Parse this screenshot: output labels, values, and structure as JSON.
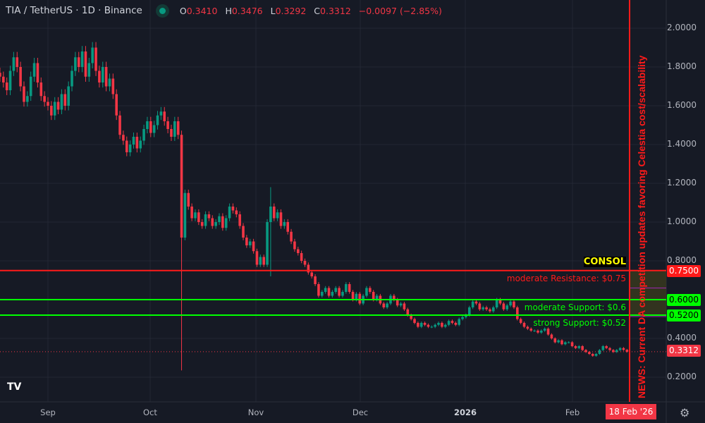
{
  "header": {
    "symbol": "TIA / TetherUS · 1D · Binance",
    "status_color": "#089981",
    "ohlc": {
      "o_label": "O",
      "o": "0.3410",
      "h_label": "H",
      "h": "0.3476",
      "l_label": "L",
      "l": "0.3292",
      "c_label": "C",
      "c": "0.3312",
      "change": "−0.0097 (−2.85%)"
    }
  },
  "price_axis": {
    "labels": [
      "2.0000",
      "1.8000",
      "1.6000",
      "1.4000",
      "1.2000",
      "1.0000",
      "0.8000",
      "0.4000",
      "0.2000"
    ]
  },
  "time_axis": {
    "labels": [
      "Sep",
      "Oct",
      "Nov",
      "Dec",
      "2026",
      "Feb"
    ],
    "cursor_date": "18 Feb '26"
  },
  "levels": [
    {
      "price": 0.75,
      "tag": "0.7500",
      "label": "moderate Resistance: $0.75",
      "color": "#ff1a1a"
    },
    {
      "price": 0.6,
      "tag": "0.6000",
      "label": "moderate Support: $0.6",
      "color": "#00ff00"
    },
    {
      "price": 0.52,
      "tag": "0.5200",
      "label": "strong Support: $0.52",
      "color": "#00ff00"
    }
  ],
  "current_price": {
    "tag": "0.3312",
    "color": "#f23645"
  },
  "zone_label": "CONSOL",
  "news": "NEWS: Current DA competition updates favoring Celestia cost/scalability",
  "colors": {
    "up": "#089981",
    "down": "#f23645",
    "background": "#161a25"
  },
  "chart_data": {
    "type": "candlestick",
    "ylim": [
      0.15,
      2.1
    ],
    "grid": true,
    "closes": [
      1.75,
      1.72,
      1.68,
      1.78,
      1.85,
      1.8,
      1.7,
      1.62,
      1.65,
      1.75,
      1.82,
      1.72,
      1.65,
      1.62,
      1.6,
      1.55,
      1.62,
      1.58,
      1.66,
      1.6,
      1.7,
      1.78,
      1.85,
      1.8,
      1.88,
      1.75,
      1.82,
      1.9,
      1.78,
      1.72,
      1.8,
      1.7,
      1.74,
      1.66,
      1.55,
      1.45,
      1.42,
      1.36,
      1.4,
      1.44,
      1.38,
      1.42,
      1.48,
      1.52,
      1.46,
      1.5,
      1.55,
      1.57,
      1.52,
      1.48,
      1.44,
      1.52,
      1.45,
      0.92,
      1.15,
      1.08,
      1.02,
      1.05,
      1.0,
      0.98,
      1.04,
      1.02,
      0.98,
      1.0,
      1.03,
      0.97,
      1.02,
      1.08,
      1.06,
      1.04,
      0.98,
      0.92,
      0.88,
      0.9,
      0.85,
      0.78,
      0.82,
      0.78,
      1.0,
      1.08,
      1.02,
      1.05,
      0.98,
      1.0,
      0.95,
      0.9,
      0.86,
      0.84,
      0.8,
      0.78,
      0.74,
      0.72,
      0.68,
      0.62,
      0.64,
      0.66,
      0.62,
      0.64,
      0.66,
      0.62,
      0.64,
      0.68,
      0.64,
      0.6,
      0.63,
      0.58,
      0.62,
      0.66,
      0.64,
      0.6,
      0.62,
      0.58,
      0.56,
      0.58,
      0.62,
      0.6,
      0.57,
      0.58,
      0.55,
      0.52,
      0.5,
      0.48,
      0.46,
      0.48,
      0.47,
      0.46,
      0.46,
      0.47,
      0.48,
      0.46,
      0.47,
      0.49,
      0.48,
      0.47,
      0.5,
      0.51,
      0.52,
      0.56,
      0.59,
      0.58,
      0.55,
      0.56,
      0.55,
      0.54,
      0.56,
      0.6,
      0.58,
      0.55,
      0.57,
      0.59,
      0.56,
      0.5,
      0.48,
      0.46,
      0.45,
      0.44,
      0.44,
      0.43,
      0.44,
      0.45,
      0.42,
      0.4,
      0.38,
      0.39,
      0.37,
      0.38,
      0.38,
      0.36,
      0.35,
      0.36,
      0.34,
      0.33,
      0.32,
      0.31,
      0.32,
      0.34,
      0.36,
      0.35,
      0.34,
      0.33,
      0.34,
      0.35,
      0.341,
      0.3312
    ],
    "notable_lows": [
      {
        "date": "Oct 10",
        "low": 0.235
      },
      {
        "date": "Nov 4",
        "low": 0.72
      }
    ],
    "notable_highs": [
      {
        "date": "Nov 4",
        "high": 1.18
      }
    ]
  }
}
